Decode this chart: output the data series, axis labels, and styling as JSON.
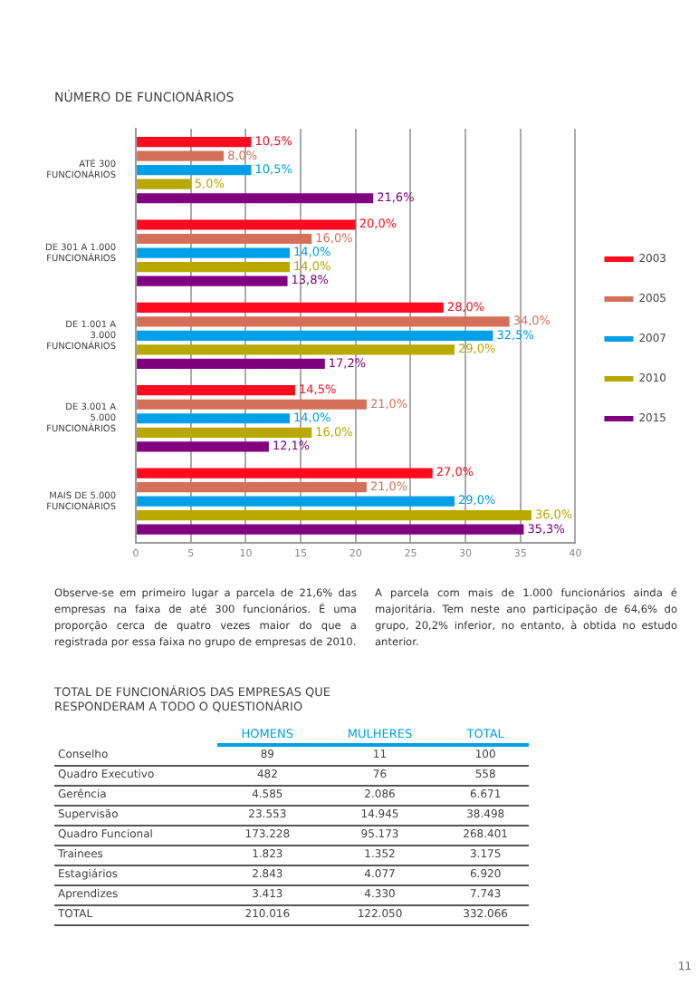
{
  "chart_data": [
    {
      "type": "bar",
      "orientation": "horizontal",
      "title": "NÚMERO DE FUNCIONÁRIOS",
      "categories": [
        "ATÉ 300 FUNCIONÁRIOS",
        "DE 301 A 1.000 FUNCIONÁRIOS",
        "DE 1.001 A 3.000 FUNCIONÁRIOS",
        "DE 3.001 A 5.000 FUNCIONÁRIOS",
        "MAIS DE 5.000 FUNCIONÁRIOS"
      ],
      "series": [
        {
          "name": "2003",
          "color": "#ff0a1e",
          "values": [
            10.5,
            20.0,
            28.0,
            14.5,
            27.0
          ],
          "value_labels": [
            "10,5%",
            "20,0%",
            "28,0%",
            "14,5%",
            "27,0%"
          ]
        },
        {
          "name": "2005",
          "color": "#d4705a",
          "values": [
            8.0,
            16.0,
            34.0,
            21.0,
            21.0
          ],
          "value_labels": [
            "8,0%",
            "16,0%",
            "34,0%",
            "21,0%",
            "21,0%"
          ]
        },
        {
          "name": "2007",
          "color": "#00a0e9",
          "values": [
            10.5,
            14.0,
            32.5,
            14.0,
            29.0
          ],
          "value_labels": [
            "10,5%",
            "14,0%",
            "32,5%",
            "14,0%",
            "29,0%"
          ]
        },
        {
          "name": "2010",
          "color": "#b8a800",
          "values": [
            5.0,
            14.0,
            29.0,
            16.0,
            36.0
          ],
          "value_labels": [
            "5,0%",
            "14,0%",
            "29,0%",
            "16,0%",
            "36,0%"
          ]
        },
        {
          "name": "2015",
          "color": "#800080",
          "values": [
            21.6,
            13.8,
            17.2,
            12.1,
            35.3
          ],
          "value_labels": [
            "21,6%",
            "13,8%",
            "17,2%",
            "12,1%",
            "35,3%"
          ]
        }
      ],
      "xlim": [
        0,
        40
      ],
      "xticks": [
        0,
        5,
        10,
        15,
        20,
        25,
        30,
        35,
        40
      ],
      "grid": "x",
      "legend": "right",
      "annotations": [
        "Observe-se em primeiro lugar a parcela de 21,6% das empresas na faixa de até 300 funcionários. É uma proporção cerca de quatro vezes maior do que a registrada por essa faixa no grupo de empresas de 2010.",
        "A parcela com mais de 1.000 funcionários ainda é majoritária. Tem neste ano participação de 64,6% do grupo, 20,2% inferior, no entanto, à obtida no estudo anterior."
      ]
    },
    {
      "type": "other",
      "title": "TOTAL DE FUNCIONÁRIOS DAS EMPRESAS QUE RESPONDERAM A TODO O QUESTIONÁRIO",
      "categories": [
        "Conselho",
        "Quadro Executivo",
        "Gerência",
        "Supervisão",
        "Quadro Funcional",
        "Trainees",
        "Estagiários",
        "Aprendizes",
        "TOTAL"
      ],
      "series": [
        {
          "name": "HOMENS",
          "values": [
            89,
            482,
            4585,
            23553,
            173228,
            1823,
            2843,
            3413,
            210016
          ],
          "value_labels": [
            "89",
            "482",
            "4.585",
            "23.553",
            "173.228",
            "1.823",
            "2.843",
            "3.413",
            "210.016"
          ]
        },
        {
          "name": "MULHERES",
          "values": [
            11,
            76,
            2086,
            14945,
            95173,
            1352,
            4077,
            4330,
            122050
          ],
          "value_labels": [
            "11",
            "76",
            "2.086",
            "14.945",
            "95.173",
            "1.352",
            "4.077",
            "4.330",
            "122.050"
          ]
        },
        {
          "name": "TOTAL",
          "values": [
            100,
            558,
            6671,
            38498,
            268401,
            3175,
            6920,
            7743,
            332066
          ],
          "value_labels": [
            "100",
            "558",
            "6.671",
            "38.498",
            "268.401",
            "3.175",
            "6.920",
            "7.743",
            "332.066"
          ]
        }
      ],
      "annotations": [
        "11"
      ]
    }
  ]
}
